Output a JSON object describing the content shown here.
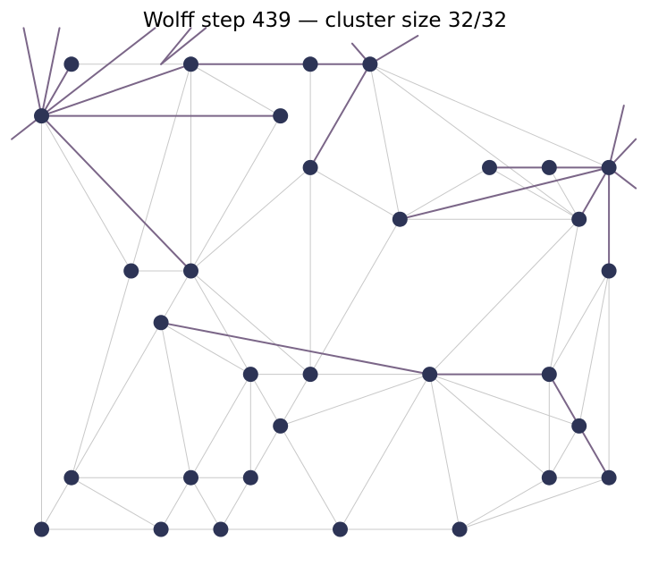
{
  "chart_data": {
    "type": "scatter",
    "title": "Wolff step 439 — cluster size 32/32",
    "xlabel": "",
    "ylabel": "",
    "axes_visible": false,
    "grid": false,
    "legend": "none",
    "xlim": [
      -0.45,
      10.0
    ],
    "ylim": [
      -0.05,
      9.45
    ],
    "colors": {
      "node": "#2d3456",
      "cluster_edge": "#7b6688",
      "lattice_edge": "#c8c8c8"
    },
    "nodes": [
      {
        "id": 0,
        "x": 0,
        "y": 8
      },
      {
        "id": 1,
        "x": 0.5,
        "y": 9
      },
      {
        "id": 2,
        "x": 2.5,
        "y": 9
      },
      {
        "id": 3,
        "x": 4.5,
        "y": 9
      },
      {
        "id": 4,
        "x": 5.5,
        "y": 9
      },
      {
        "id": 5,
        "x": 4,
        "y": 8
      },
      {
        "id": 6,
        "x": 4.5,
        "y": 7
      },
      {
        "id": 7,
        "x": 7.5,
        "y": 7
      },
      {
        "id": 8,
        "x": 8.5,
        "y": 7
      },
      {
        "id": 9,
        "x": 9.5,
        "y": 7
      },
      {
        "id": 10,
        "x": 6,
        "y": 6
      },
      {
        "id": 11,
        "x": 9,
        "y": 6
      },
      {
        "id": 12,
        "x": 1.5,
        "y": 5
      },
      {
        "id": 13,
        "x": 2.5,
        "y": 5
      },
      {
        "id": 14,
        "x": 9.5,
        "y": 5
      },
      {
        "id": 15,
        "x": 2,
        "y": 4
      },
      {
        "id": 16,
        "x": 3.5,
        "y": 3
      },
      {
        "id": 17,
        "x": 4.5,
        "y": 3
      },
      {
        "id": 18,
        "x": 6.5,
        "y": 3
      },
      {
        "id": 19,
        "x": 8.5,
        "y": 3
      },
      {
        "id": 20,
        "x": 4,
        "y": 2
      },
      {
        "id": 21,
        "x": 9,
        "y": 2
      },
      {
        "id": 22,
        "x": 0.5,
        "y": 1
      },
      {
        "id": 23,
        "x": 2.5,
        "y": 1
      },
      {
        "id": 24,
        "x": 3.5,
        "y": 1
      },
      {
        "id": 25,
        "x": 8.5,
        "y": 1
      },
      {
        "id": 26,
        "x": 9.5,
        "y": 1
      },
      {
        "id": 27,
        "x": 0,
        "y": 0
      },
      {
        "id": 28,
        "x": 2,
        "y": 0
      },
      {
        "id": 29,
        "x": 3,
        "y": 0
      },
      {
        "id": 30,
        "x": 5,
        "y": 0
      },
      {
        "id": 31,
        "x": 7,
        "y": 0
      }
    ],
    "lattice_edges": [
      [
        1,
        2
      ],
      [
        2,
        3
      ],
      [
        2,
        5
      ],
      [
        2,
        12
      ],
      [
        2,
        13
      ],
      [
        3,
        6
      ],
      [
        4,
        10
      ],
      [
        4,
        9
      ],
      [
        4,
        11
      ],
      [
        6,
        10
      ],
      [
        6,
        13
      ],
      [
        5,
        13
      ],
      [
        6,
        17
      ],
      [
        10,
        7
      ],
      [
        10,
        17
      ],
      [
        10,
        11
      ],
      [
        7,
        11
      ],
      [
        8,
        11
      ],
      [
        9,
        11
      ],
      [
        11,
        18
      ],
      [
        11,
        19
      ],
      [
        14,
        19
      ],
      [
        14,
        21
      ],
      [
        14,
        26
      ],
      [
        0,
        27
      ],
      [
        0,
        12
      ],
      [
        12,
        13
      ],
      [
        12,
        22
      ],
      [
        13,
        15
      ],
      [
        13,
        16
      ],
      [
        13,
        17
      ],
      [
        15,
        22
      ],
      [
        15,
        16
      ],
      [
        15,
        23
      ],
      [
        16,
        17
      ],
      [
        16,
        20
      ],
      [
        16,
        23
      ],
      [
        16,
        24
      ],
      [
        17,
        18
      ],
      [
        17,
        20
      ],
      [
        20,
        18
      ],
      [
        20,
        29
      ],
      [
        20,
        30
      ],
      [
        18,
        21
      ],
      [
        18,
        25
      ],
      [
        18,
        30
      ],
      [
        18,
        31
      ],
      [
        19,
        25
      ],
      [
        21,
        25
      ],
      [
        22,
        23
      ],
      [
        22,
        27
      ],
      [
        22,
        28
      ],
      [
        23,
        24
      ],
      [
        23,
        28
      ],
      [
        23,
        29
      ],
      [
        27,
        28
      ],
      [
        28,
        29
      ],
      [
        29,
        30
      ],
      [
        30,
        31
      ],
      [
        31,
        25
      ],
      [
        31,
        26
      ],
      [
        25,
        26
      ]
    ],
    "cluster_edges": [
      [
        0,
        1
      ],
      [
        0,
        2
      ],
      [
        0,
        5
      ],
      [
        0,
        13
      ],
      [
        2,
        3
      ],
      [
        3,
        4
      ],
      [
        4,
        6
      ],
      [
        7,
        8
      ],
      [
        8,
        9
      ],
      [
        9,
        10
      ],
      [
        9,
        11
      ],
      [
        9,
        14
      ],
      [
        15,
        18
      ],
      [
        18,
        19
      ],
      [
        19,
        21
      ],
      [
        21,
        26
      ]
    ],
    "boundary_edges": [
      [
        [
          0,
          8
        ],
        [
          -0.3,
          9.7
        ]
      ],
      [
        [
          0,
          8
        ],
        [
          0.3,
          9.7
        ]
      ],
      [
        [
          0,
          8
        ],
        [
          1.9,
          9.7
        ]
      ],
      [
        [
          0,
          8
        ],
        [
          -0.5,
          7.55
        ]
      ],
      [
        [
          2,
          9
        ],
        [
          2.5,
          9.7
        ]
      ],
      [
        [
          2,
          9
        ],
        [
          2.75,
          9.7
        ]
      ],
      [
        [
          5.5,
          9
        ],
        [
          5.2,
          9.4
        ]
      ],
      [
        [
          5.5,
          9
        ],
        [
          6.3,
          9.55
        ]
      ],
      [
        [
          9.5,
          7
        ],
        [
          9.75,
          8.2
        ]
      ],
      [
        [
          9.5,
          7
        ],
        [
          9.95,
          7.55
        ]
      ],
      [
        [
          9.5,
          7
        ],
        [
          9.95,
          6.6
        ]
      ]
    ]
  }
}
